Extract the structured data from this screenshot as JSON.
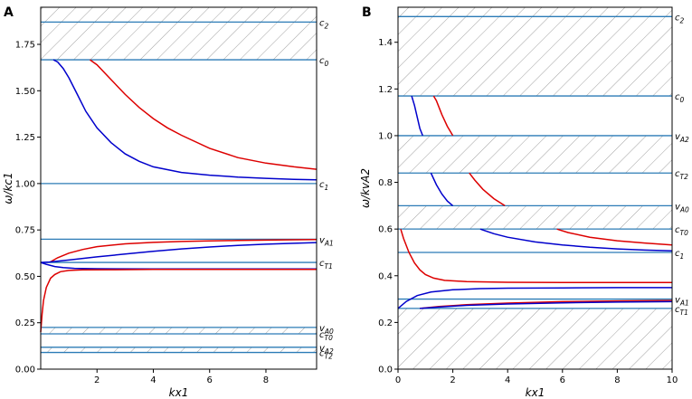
{
  "chart_data": [
    {
      "type": "line",
      "panel_label": "A",
      "xlabel": "kx1",
      "ylabel": "ω/kc1",
      "xlim": [
        0,
        9.8
      ],
      "ylim": [
        0,
        1.95
      ],
      "xticks": [
        "2",
        "4",
        "6",
        "8"
      ],
      "xtick_values": [
        2,
        4,
        6,
        8
      ],
      "yticks": [
        "0.00",
        "0.25",
        "0.50",
        "0.75",
        "1.00",
        "1.25",
        "1.50",
        "1.75"
      ],
      "ytick_values": [
        0,
        0.25,
        0.5,
        0.75,
        1.0,
        1.25,
        1.5,
        1.75
      ],
      "hatched_bands": [
        [
          1.667,
          1.95
        ],
        [
          0.19,
          0.225
        ],
        [
          0.09,
          0.118
        ]
      ],
      "levels": [
        {
          "name": "c2",
          "value": 1.87
        },
        {
          "name": "c0",
          "value": 1.667
        },
        {
          "name": "c1",
          "value": 1.0
        },
        {
          "name": "vA1",
          "value": 0.7
        },
        {
          "name": "cT1",
          "value": 0.575
        },
        {
          "name": "vA0",
          "value": 0.225
        },
        {
          "name": "cT0",
          "value": 0.19
        },
        {
          "name": "vA2",
          "value": 0.118
        },
        {
          "name": "cT2",
          "value": 0.09
        }
      ],
      "level_labels": [
        {
          "base": "c",
          "sub": "2"
        },
        {
          "base": "c",
          "sub": "0"
        },
        {
          "base": "c",
          "sub": "1"
        },
        {
          "base": "v",
          "sub": "A1"
        },
        {
          "base": "c",
          "sub": "T1"
        },
        {
          "base": "v",
          "sub": "A0"
        },
        {
          "base": "c",
          "sub": "T0"
        },
        {
          "base": "v",
          "sub": "A2"
        },
        {
          "base": "c",
          "sub": "T2"
        }
      ],
      "series": [
        {
          "name": "blue-upper",
          "color": "#0000cc",
          "points": [
            [
              0.45,
              1.667
            ],
            [
              0.6,
              1.655
            ],
            [
              0.8,
              1.62
            ],
            [
              1.0,
              1.57
            ],
            [
              1.3,
              1.48
            ],
            [
              1.6,
              1.39
            ],
            [
              2.0,
              1.3
            ],
            [
              2.5,
              1.22
            ],
            [
              3.0,
              1.16
            ],
            [
              3.5,
              1.12
            ],
            [
              4.0,
              1.09
            ],
            [
              5.0,
              1.06
            ],
            [
              6.0,
              1.045
            ],
            [
              7.0,
              1.035
            ],
            [
              8.0,
              1.028
            ],
            [
              9.0,
              1.023
            ],
            [
              9.8,
              1.02
            ]
          ]
        },
        {
          "name": "red-upper",
          "color": "#dd0000",
          "points": [
            [
              1.75,
              1.667
            ],
            [
              2.0,
              1.64
            ],
            [
              2.5,
              1.56
            ],
            [
              3.0,
              1.48
            ],
            [
              3.5,
              1.41
            ],
            [
              4.0,
              1.35
            ],
            [
              4.5,
              1.3
            ],
            [
              5.0,
              1.26
            ],
            [
              6.0,
              1.19
            ],
            [
              7.0,
              1.14
            ],
            [
              8.0,
              1.11
            ],
            [
              9.0,
              1.09
            ],
            [
              9.8,
              1.077
            ]
          ]
        },
        {
          "name": "red-mid-upper",
          "color": "#dd0000",
          "points": [
            [
              0.35,
              0.578
            ],
            [
              0.6,
              0.6
            ],
            [
              1.0,
              0.625
            ],
            [
              1.5,
              0.645
            ],
            [
              2.0,
              0.66
            ],
            [
              3.0,
              0.675
            ],
            [
              4.0,
              0.683
            ],
            [
              5.0,
              0.688
            ],
            [
              6.0,
              0.691
            ],
            [
              7.0,
              0.693
            ],
            [
              8.0,
              0.695
            ],
            [
              9.0,
              0.697
            ],
            [
              9.8,
              0.698
            ]
          ]
        },
        {
          "name": "blue-mid-upper",
          "color": "#0000cc",
          "points": [
            [
              0.0,
              0.575
            ],
            [
              0.3,
              0.577
            ],
            [
              1.0,
              0.588
            ],
            [
              2.0,
              0.605
            ],
            [
              3.0,
              0.62
            ],
            [
              4.0,
              0.635
            ],
            [
              5.0,
              0.648
            ],
            [
              6.0,
              0.658
            ],
            [
              7.0,
              0.667
            ],
            [
              8.0,
              0.673
            ],
            [
              9.0,
              0.678
            ],
            [
              9.8,
              0.682
            ]
          ]
        },
        {
          "name": "blue-mid-lower",
          "color": "#0000cc",
          "points": [
            [
              0.0,
              0.575
            ],
            [
              0.2,
              0.565
            ],
            [
              0.5,
              0.553
            ],
            [
              0.8,
              0.547
            ],
            [
              1.2,
              0.543
            ],
            [
              2.0,
              0.541
            ],
            [
              4.0,
              0.54
            ],
            [
              6.0,
              0.54
            ],
            [
              8.0,
              0.54
            ],
            [
              9.8,
              0.54
            ]
          ]
        },
        {
          "name": "red-lower",
          "color": "#dd0000",
          "points": [
            [
              0.0,
              0.2
            ],
            [
              0.05,
              0.3
            ],
            [
              0.1,
              0.37
            ],
            [
              0.2,
              0.44
            ],
            [
              0.35,
              0.49
            ],
            [
              0.5,
              0.51
            ],
            [
              0.7,
              0.525
            ],
            [
              1.0,
              0.532
            ],
            [
              1.5,
              0.535
            ],
            [
              2.5,
              0.536
            ],
            [
              4.0,
              0.537
            ],
            [
              6.0,
              0.537
            ],
            [
              8.0,
              0.537
            ],
            [
              9.8,
              0.537
            ]
          ]
        }
      ]
    },
    {
      "type": "line",
      "panel_label": "B",
      "xlabel": "kx1",
      "ylabel": "ω/kvA2",
      "xlim": [
        0,
        10
      ],
      "ylim": [
        0,
        1.55
      ],
      "xticks": [
        "0",
        "2",
        "4",
        "6",
        "8",
        "10"
      ],
      "xtick_values": [
        0,
        2,
        4,
        6,
        8,
        10
      ],
      "yticks": [
        "0.0",
        "0.2",
        "0.4",
        "0.6",
        "0.8",
        "1.0",
        "1.2",
        "1.4"
      ],
      "ytick_values": [
        0,
        0.2,
        0.4,
        0.6,
        0.8,
        1.0,
        1.2,
        1.4
      ],
      "hatched_bands": [
        [
          1.17,
          1.55
        ],
        [
          0.84,
          1.0
        ],
        [
          0.6,
          0.7
        ],
        [
          0,
          0.26
        ]
      ],
      "levels": [
        {
          "name": "c2",
          "value": 1.51
        },
        {
          "name": "c0",
          "value": 1.17
        },
        {
          "name": "vA2",
          "value": 1.0
        },
        {
          "name": "cT2",
          "value": 0.84
        },
        {
          "name": "vA0",
          "value": 0.7
        },
        {
          "name": "cT0",
          "value": 0.6
        },
        {
          "name": "c1",
          "value": 0.5
        },
        {
          "name": "vA1",
          "value": 0.3
        },
        {
          "name": "cT1",
          "value": 0.26
        }
      ],
      "level_labels": [
        {
          "base": "c",
          "sub": "2"
        },
        {
          "base": "c",
          "sub": "0"
        },
        {
          "base": "v",
          "sub": "A2"
        },
        {
          "base": "c",
          "sub": "T2"
        },
        {
          "base": "v",
          "sub": "A0"
        },
        {
          "base": "c",
          "sub": "T0"
        },
        {
          "base": "c",
          "sub": "1"
        },
        {
          "base": "v",
          "sub": "A1"
        },
        {
          "base": "c",
          "sub": "T1"
        }
      ],
      "series": [
        {
          "name": "blue-top",
          "color": "#0000cc",
          "points": [
            [
              0.5,
              1.17
            ],
            [
              0.6,
              1.13
            ],
            [
              0.7,
              1.08
            ],
            [
              0.8,
              1.03
            ],
            [
              0.9,
              1.0
            ]
          ]
        },
        {
          "name": "red-top",
          "color": "#dd0000",
          "points": [
            [
              1.3,
              1.17
            ],
            [
              1.4,
              1.15
            ],
            [
              1.6,
              1.09
            ],
            [
              1.8,
              1.04
            ],
            [
              2.0,
              1.0
            ]
          ]
        },
        {
          "name": "blue-band2",
          "color": "#0000cc",
          "points": [
            [
              1.2,
              0.84
            ],
            [
              1.4,
              0.79
            ],
            [
              1.6,
              0.75
            ],
            [
              1.8,
              0.72
            ],
            [
              2.0,
              0.7
            ]
          ]
        },
        {
          "name": "red-band2",
          "color": "#dd0000",
          "points": [
            [
              2.6,
              0.84
            ],
            [
              2.8,
              0.81
            ],
            [
              3.1,
              0.77
            ],
            [
              3.5,
              0.73
            ],
            [
              3.9,
              0.7
            ]
          ]
        },
        {
          "name": "blue-c1",
          "color": "#0000cc",
          "points": [
            [
              3.0,
              0.6
            ],
            [
              3.5,
              0.58
            ],
            [
              4.0,
              0.565
            ],
            [
              5.0,
              0.545
            ],
            [
              6.0,
              0.532
            ],
            [
              7.0,
              0.522
            ],
            [
              8.0,
              0.515
            ],
            [
              9.0,
              0.51
            ],
            [
              10.0,
              0.507
            ]
          ]
        },
        {
          "name": "red-c1",
          "color": "#dd0000",
          "points": [
            [
              5.8,
              0.6
            ],
            [
              6.2,
              0.585
            ],
            [
              7.0,
              0.565
            ],
            [
              8.0,
              0.55
            ],
            [
              9.0,
              0.54
            ],
            [
              10.0,
              0.532
            ]
          ]
        },
        {
          "name": "red-lower",
          "color": "#dd0000",
          "points": [
            [
              0.1,
              0.6
            ],
            [
              0.2,
              0.56
            ],
            [
              0.4,
              0.5
            ],
            [
              0.6,
              0.455
            ],
            [
              0.8,
              0.425
            ],
            [
              1.0,
              0.405
            ],
            [
              1.3,
              0.39
            ],
            [
              1.7,
              0.38
            ],
            [
              2.5,
              0.375
            ],
            [
              4.0,
              0.372
            ],
            [
              6.0,
              0.371
            ],
            [
              8.0,
              0.371
            ],
            [
              10.0,
              0.371
            ]
          ]
        },
        {
          "name": "blue-lower",
          "color": "#0000cc",
          "points": [
            [
              0.0,
              0.26
            ],
            [
              0.3,
              0.29
            ],
            [
              0.7,
              0.315
            ],
            [
              1.2,
              0.33
            ],
            [
              2.0,
              0.34
            ],
            [
              3.0,
              0.345
            ],
            [
              4.0,
              0.347
            ],
            [
              6.0,
              0.348
            ],
            [
              8.0,
              0.349
            ],
            [
              10.0,
              0.349
            ]
          ]
        },
        {
          "name": "red-bottom",
          "color": "#dd0000",
          "points": [
            [
              0.8,
              0.26
            ],
            [
              1.5,
              0.268
            ],
            [
              2.5,
              0.276
            ],
            [
              4.0,
              0.283
            ],
            [
              6.0,
              0.289
            ],
            [
              8.0,
              0.292
            ],
            [
              10.0,
              0.294
            ]
          ]
        },
        {
          "name": "blue-bottom",
          "color": "#0000cc",
          "points": [
            [
              0.8,
              0.26
            ],
            [
              1.5,
              0.266
            ],
            [
              2.5,
              0.273
            ],
            [
              4.0,
              0.279
            ],
            [
              6.0,
              0.284
            ],
            [
              8.0,
              0.287
            ],
            [
              10.0,
              0.289
            ]
          ]
        }
      ]
    }
  ]
}
